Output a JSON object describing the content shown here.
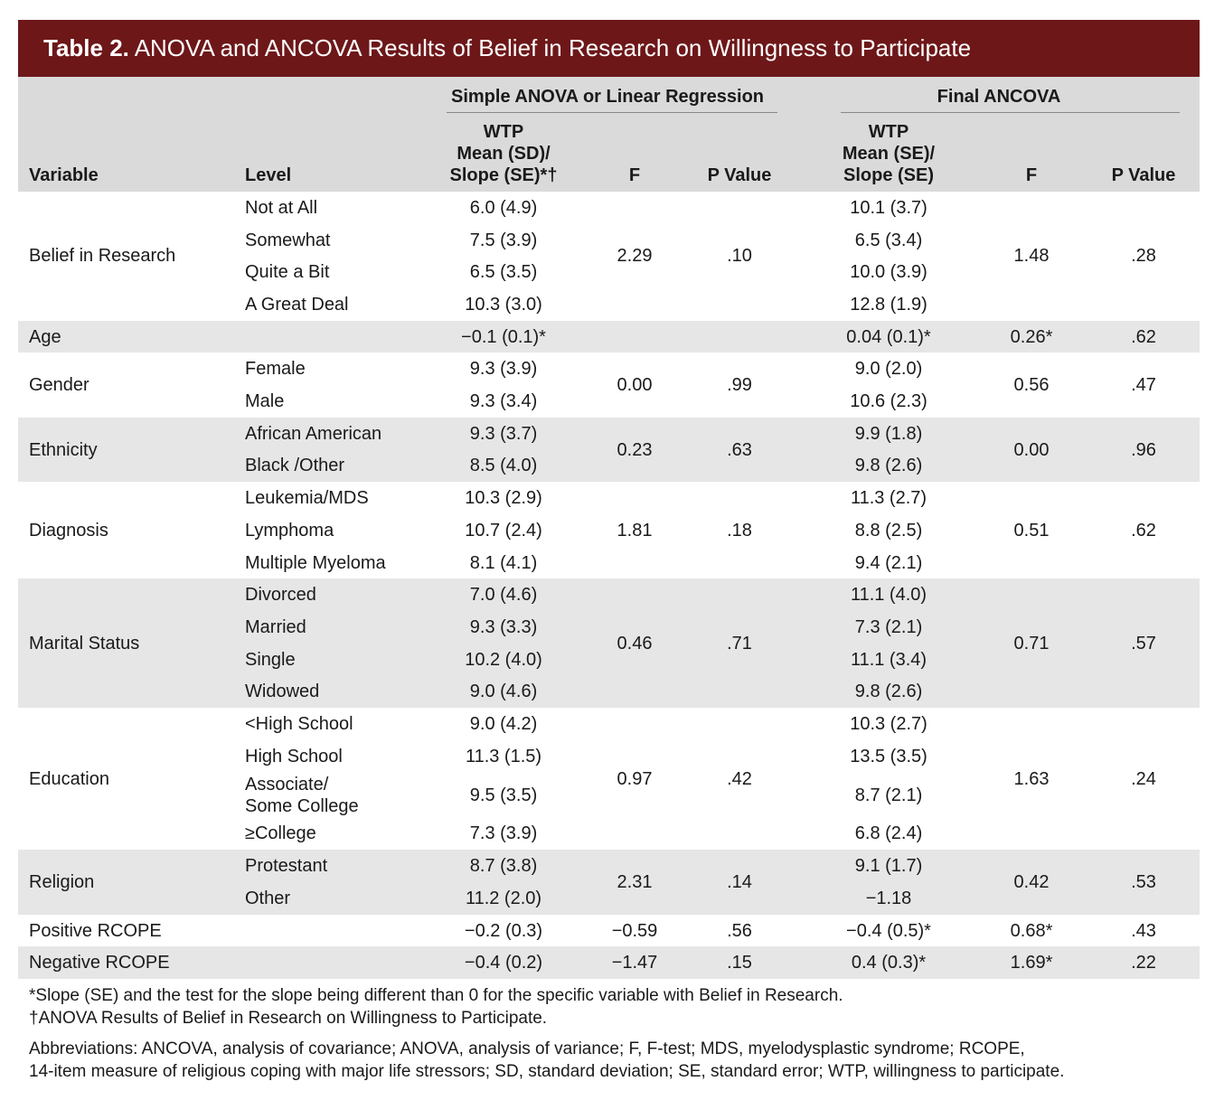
{
  "title": {
    "label": "Table 2.",
    "text": "ANOVA and ANCOVA Results of Belief in Research on Willingness to Participate"
  },
  "header": {
    "variable": "Variable",
    "level": "Level",
    "group1": "Simple ANOVA or Linear Regression",
    "group2": "Final ANCOVA",
    "wtp1": "WTP\nMean (SD)/\nSlope (SE)*†",
    "f1": "F",
    "p1": "P Value",
    "wtp2": "WTP\nMean (SE)/\nSlope (SE)",
    "f2": "F",
    "p2": "P Value"
  },
  "groups": [
    {
      "variable": "Belief in Research",
      "f1": "2.29",
      "p1": ".10",
      "f2": "1.48",
      "p2": ".28",
      "levels": [
        {
          "level": "Not at All",
          "wtp1": "6.0 (4.9)",
          "wtp2": "10.1 (3.7)"
        },
        {
          "level": "Somewhat",
          "wtp1": "7.5 (3.9)",
          "wtp2": "6.5 (3.4)"
        },
        {
          "level": "Quite a Bit",
          "wtp1": "6.5 (3.5)",
          "wtp2": "10.0 (3.9)"
        },
        {
          "level": "A Great Deal",
          "wtp1": "10.3 (3.0)",
          "wtp2": "12.8 (1.9)"
        }
      ]
    },
    {
      "variable": "Age",
      "f2": "0.26*",
      "p2": ".62",
      "levels": [
        {
          "wtp1": "−0.1 (0.1)*",
          "wtp2": "0.04 (0.1)*"
        }
      ]
    },
    {
      "variable": "Gender",
      "f1": "0.00",
      "p1": ".99",
      "f2": "0.56",
      "p2": ".47",
      "levels": [
        {
          "level": "Female",
          "wtp1": "9.3 (3.9)",
          "wtp2": "9.0 (2.0)"
        },
        {
          "level": "Male",
          "wtp1": "9.3 (3.4)",
          "wtp2": "10.6 (2.3)"
        }
      ]
    },
    {
      "variable": "Ethnicity",
      "f1": "0.23",
      "p1": ".63",
      "f2": "0.00",
      "p2": ".96",
      "levels": [
        {
          "level": "African American",
          "wtp1": "9.3 (3.7)",
          "wtp2": "9.9 (1.8)"
        },
        {
          "level": "Black /Other",
          "wtp1": "8.5 (4.0)",
          "wtp2": "9.8 (2.6)"
        }
      ]
    },
    {
      "variable": "Diagnosis",
      "f1": "1.81",
      "p1": ".18",
      "f2": "0.51",
      "p2": ".62",
      "levels": [
        {
          "level": "Leukemia/MDS",
          "wtp1": "10.3 (2.9)",
          "wtp2": "11.3 (2.7)"
        },
        {
          "level": "Lymphoma",
          "wtp1": "10.7 (2.4)",
          "wtp2": "8.8 (2.5)"
        },
        {
          "level": "Multiple Myeloma",
          "wtp1": "8.1 (4.1)",
          "wtp2": "9.4 (2.1)"
        }
      ]
    },
    {
      "variable": "Marital Status",
      "f1": "0.46",
      "p1": ".71",
      "f2": "0.71",
      "p2": ".57",
      "levels": [
        {
          "level": "Divorced",
          "wtp1": "7.0 (4.6)",
          "wtp2": "11.1 (4.0)"
        },
        {
          "level": "Married",
          "wtp1": "9.3 (3.3)",
          "wtp2": "7.3 (2.1)"
        },
        {
          "level": "Single",
          "wtp1": "10.2 (4.0)",
          "wtp2": "11.1 (3.4)"
        },
        {
          "level": "Widowed",
          "wtp1": "9.0 (4.6)",
          "wtp2": "9.8 (2.6)"
        }
      ]
    },
    {
      "variable": "Education",
      "f1": "0.97",
      "p1": ".42",
      "f2": "1.63",
      "p2": ".24",
      "levels": [
        {
          "level": "<High School",
          "wtp1": "9.0 (4.2)",
          "wtp2": "10.3 (2.7)"
        },
        {
          "level": "High School",
          "wtp1": "11.3 (1.5)",
          "wtp2": "13.5 (3.5)"
        },
        {
          "level": "Associate/\nSome College",
          "wtp1": "9.5 (3.5)",
          "wtp2": "8.7 (2.1)"
        },
        {
          "level": "≥College",
          "wtp1": "7.3 (3.9)",
          "wtp2": "6.8 (2.4)"
        }
      ]
    },
    {
      "variable": "Religion",
      "f1": "2.31",
      "p1": ".14",
      "f2": "0.42",
      "p2": ".53",
      "levels": [
        {
          "level": "Protestant",
          "wtp1": "8.7 (3.8)",
          "wtp2": "9.1 (1.7)"
        },
        {
          "level": "Other",
          "wtp1": "11.2 (2.0)",
          "wtp2": "−1.18"
        }
      ]
    },
    {
      "variable": "Positive RCOPE",
      "f1": "−0.59",
      "p1": ".56",
      "f2": "0.68*",
      "p2": ".43",
      "levels": [
        {
          "wtp1": "−0.2 (0.3)",
          "wtp2": "−0.4 (0.5)*"
        }
      ]
    },
    {
      "variable": "Negative RCOPE",
      "f1": "−1.47",
      "p1": ".15",
      "f2": "1.69*",
      "p2": ".22",
      "levels": [
        {
          "wtp1": "−0.4 (0.2)",
          "wtp2": "0.4 (0.3)*"
        }
      ]
    }
  ],
  "footnotes": [
    "*Slope (SE) and the test for the slope being different than 0 for the specific variable with Belief in Research.",
    "†ANOVA Results of Belief in Research on Willingness to Participate."
  ],
  "abbreviations": "Abbreviations: ANCOVA, analysis of covariance; ANOVA, analysis of variance; F, F-test; MDS, myelodysplastic syndrome; RCOPE,\n14-item measure of religious coping with major life stressors; SD, standard deviation; SE, standard error; WTP, willingness to participate."
}
